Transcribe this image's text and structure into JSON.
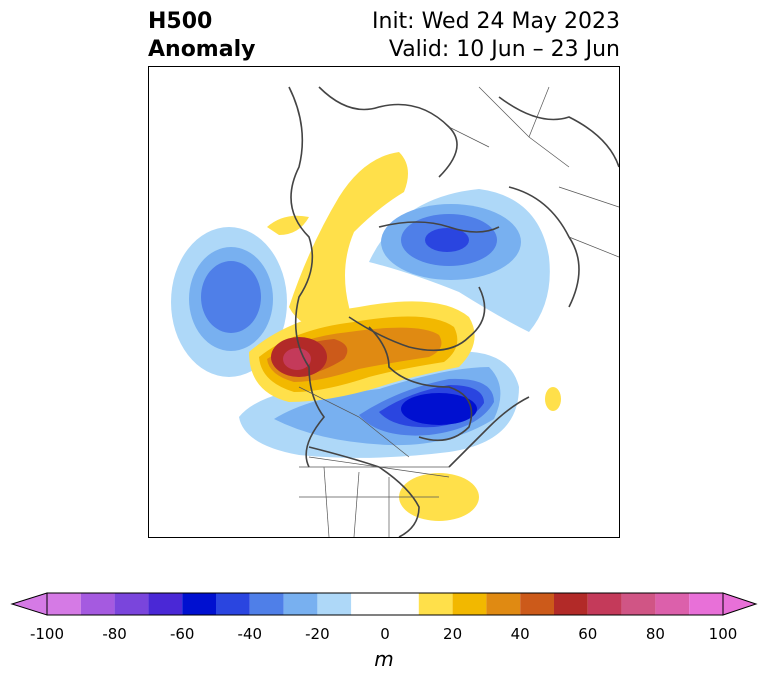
{
  "title": {
    "variable": "H500",
    "subtitle": "Anomaly",
    "init": "Init: Wed 24 May 2023",
    "valid": "Valid: 10 Jun – 23 Jun"
  },
  "colorbar": {
    "unit": "m",
    "min": -100,
    "max": 100,
    "extend": "both",
    "tick_labels": [
      "-100",
      "-80",
      "-60",
      "-40",
      "-20",
      "0",
      "20",
      "40",
      "60",
      "80",
      "100"
    ],
    "bins": [
      {
        "range": [
          -100,
          -90
        ],
        "color": "#d57ae5"
      },
      {
        "range": [
          -90,
          -80
        ],
        "color": "#a55ae0"
      },
      {
        "range": [
          -80,
          -70
        ],
        "color": "#7a45dc"
      },
      {
        "range": [
          -70,
          -60
        ],
        "color": "#4a28d6"
      },
      {
        "range": [
          -60,
          -50
        ],
        "color": "#0010d0"
      },
      {
        "range": [
          -50,
          -40
        ],
        "color": "#2a45e0"
      },
      {
        "range": [
          -40,
          -30
        ],
        "color": "#4f7fe8"
      },
      {
        "range": [
          -30,
          -20
        ],
        "color": "#78b0f0"
      },
      {
        "range": [
          -20,
          -10
        ],
        "color": "#aed8f8"
      },
      {
        "range": [
          -10,
          10
        ],
        "color": "#ffffff"
      },
      {
        "range": [
          10,
          20
        ],
        "color": "#ffe04a"
      },
      {
        "range": [
          20,
          30
        ],
        "color": "#f2b800"
      },
      {
        "range": [
          30,
          40
        ],
        "color": "#e08a12"
      },
      {
        "range": [
          40,
          50
        ],
        "color": "#cc5a1a"
      },
      {
        "range": [
          50,
          60
        ],
        "color": "#b22a28"
      },
      {
        "range": [
          60,
          70
        ],
        "color": "#c43a5a"
      },
      {
        "range": [
          70,
          80
        ],
        "color": "#d05585"
      },
      {
        "range": [
          80,
          90
        ],
        "color": "#dc60ab"
      },
      {
        "range": [
          90,
          100
        ],
        "color": "#e870d8"
      }
    ],
    "under_color": "#d57ae5",
    "over_color": "#e870d8"
  },
  "map": {
    "region": "North America / Arctic",
    "features": [
      "coastlines",
      "country-borders",
      "state-borders"
    ],
    "anomaly_centers": [
      {
        "name": "positive-ridge-nw-canada",
        "value": 60
      },
      {
        "name": "negative-trough-hudson-bay",
        "value": -55
      },
      {
        "name": "negative-low-siberia-arctic",
        "value": -40
      },
      {
        "name": "negative-low-north-pacific",
        "value": -35
      },
      {
        "name": "positive-ridge-alaska-bering",
        "value": 15
      },
      {
        "name": "positive-southeast-us",
        "value": 15
      },
      {
        "name": "positive-north-atlantic",
        "value": 15
      }
    ]
  }
}
